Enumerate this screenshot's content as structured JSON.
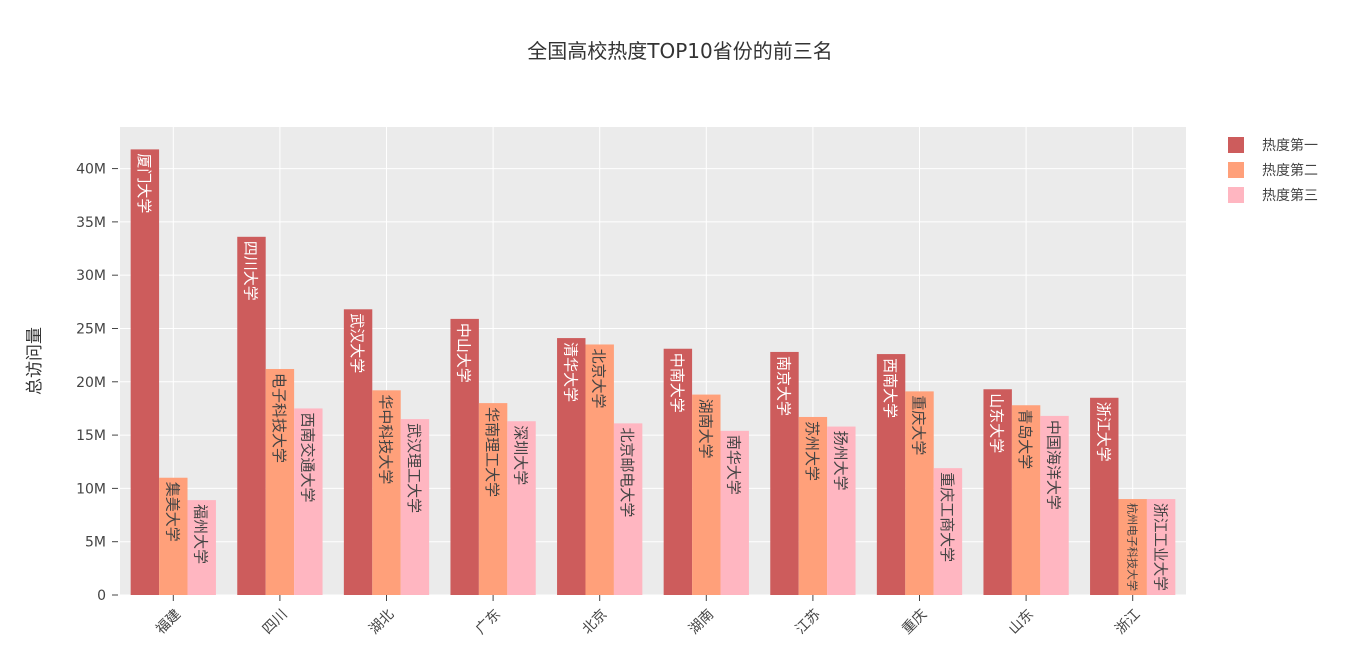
{
  "chart_data": {
    "type": "bar",
    "title": "全国高校热度TOP10省份的前三名",
    "y_label": "总访问量",
    "categories": [
      "福建",
      "四川",
      "湖北",
      "广东",
      "北京",
      "湖南",
      "江苏",
      "重庆",
      "山东",
      "浙江"
    ],
    "series": [
      {
        "name": "热度第一",
        "color": "#cd5c5c",
        "values": [
          41800000,
          33600000,
          26800000,
          25900000,
          24100000,
          23100000,
          22800000,
          22600000,
          19300000,
          18500000
        ],
        "labels": [
          "厦门大学",
          "四川大学",
          "武汉大学",
          "中山大学",
          "清华大学",
          "中南大学",
          "南京大学",
          "西南大学",
          "山东大学",
          "浙江大学"
        ]
      },
      {
        "name": "热度第二",
        "color": "#ffa07a",
        "values": [
          11000000,
          21200000,
          19200000,
          18000000,
          23500000,
          18800000,
          16700000,
          19100000,
          17800000,
          9000000
        ],
        "labels": [
          "集美大学",
          "电子科技大学",
          "华中科技大学",
          "华南理工大学",
          "北京大学",
          "湖南大学",
          "苏州大学",
          "重庆大学",
          "青岛大学",
          "杭州电子科技大学"
        ]
      },
      {
        "name": "热度第三",
        "color": "#ffb6c1",
        "values": [
          8900000,
          17500000,
          16500000,
          16300000,
          16100000,
          15400000,
          15800000,
          11900000,
          16800000,
          9000000
        ],
        "labels": [
          "福州大学",
          "西南交通大学",
          "武汉理工大学",
          "深圳大学",
          "北京邮电大学",
          "南华大学",
          "扬州大学",
          "重庆工商大学",
          "中国海洋大学",
          "浙江工业大学"
        ]
      }
    ],
    "ylim": [
      0,
      43900000
    ],
    "yticks": [
      0,
      {
        "value": 5000000,
        "label": "5M"
      },
      {
        "value": 10000000,
        "label": "10M"
      },
      {
        "value": 15000000,
        "label": "15M"
      },
      {
        "value": 20000000,
        "label": "20M"
      },
      {
        "value": 25000000,
        "label": "25M"
      },
      {
        "value": 30000000,
        "label": "30M"
      },
      {
        "value": 35000000,
        "label": "35M"
      },
      {
        "value": 40000000,
        "label": "40M"
      }
    ],
    "grid": true,
    "legend": "right"
  }
}
